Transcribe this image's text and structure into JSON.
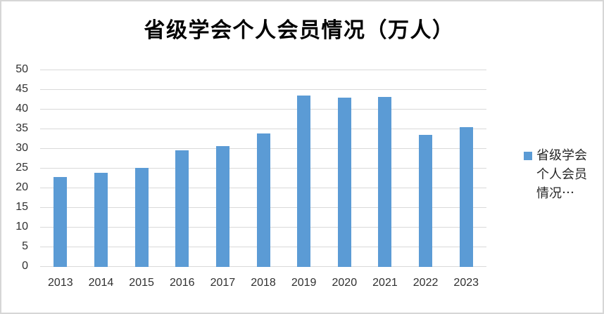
{
  "title": "省级学会个人会员情况（万人）",
  "legend": {
    "lines": [
      "省级学会",
      "个人会员",
      "情况⋯"
    ]
  },
  "colors": {
    "bar": "#5b9bd5",
    "gridline": "#d9d9d9",
    "axis_text": "#303030",
    "frame_border": "#d6d6d6"
  },
  "chart_data": {
    "type": "bar",
    "title": "省级学会个人会员情况（万人）",
    "categories": [
      "2013",
      "2014",
      "2015",
      "2016",
      "2017",
      "2018",
      "2019",
      "2020",
      "2021",
      "2022",
      "2023"
    ],
    "series": [
      {
        "name": "省级学会个人会员情况⋯",
        "values": [
          22.9,
          23.9,
          25.1,
          29.7,
          30.8,
          33.9,
          43.6,
          43.1,
          43.3,
          33.6,
          35.5
        ]
      }
    ],
    "xlabel": "",
    "ylabel": "",
    "ylim": [
      0,
      50
    ],
    "ytick_step": 5,
    "ytick_labels": [
      "0",
      "5",
      "10",
      "15",
      "20",
      "25",
      "30",
      "35",
      "40",
      "45",
      "50"
    ],
    "grid": true,
    "legend_position": "right"
  }
}
